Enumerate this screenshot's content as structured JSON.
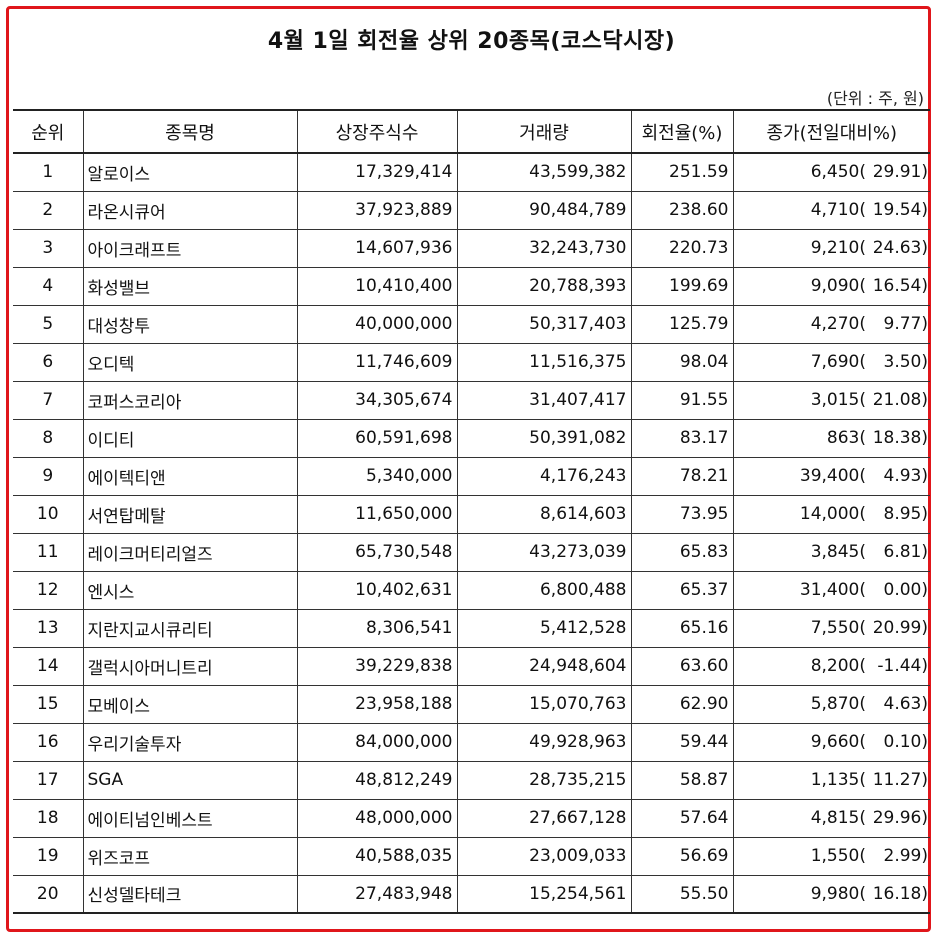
{
  "title": "4월 1일 회전율 상위 20종목(코스닥시장)",
  "unit": "(단위 : 주, 원)",
  "headers": {
    "rank": "순위",
    "name": "종목명",
    "listed_shares": "상장주식수",
    "volume": "거래량",
    "turnover": "회전율(%)",
    "close": "종가(전일대비%)"
  },
  "rows": [
    {
      "rank": "1",
      "name": "알로이스",
      "listed_shares": "17,329,414",
      "volume": "43,599,382",
      "turnover": "251.59",
      "price": "6,450(",
      "change": "29.91)"
    },
    {
      "rank": "2",
      "name": "라온시큐어",
      "listed_shares": "37,923,889",
      "volume": "90,484,789",
      "turnover": "238.60",
      "price": "4,710(",
      "change": "19.54)"
    },
    {
      "rank": "3",
      "name": "아이크래프트",
      "listed_shares": "14,607,936",
      "volume": "32,243,730",
      "turnover": "220.73",
      "price": "9,210(",
      "change": "24.63)"
    },
    {
      "rank": "4",
      "name": "화성밸브",
      "listed_shares": "10,410,400",
      "volume": "20,788,393",
      "turnover": "199.69",
      "price": "9,090(",
      "change": "16.54)"
    },
    {
      "rank": "5",
      "name": "대성창투",
      "listed_shares": "40,000,000",
      "volume": "50,317,403",
      "turnover": "125.79",
      "price": "4,270(",
      "change": "9.77)"
    },
    {
      "rank": "6",
      "name": "오디텍",
      "listed_shares": "11,746,609",
      "volume": "11,516,375",
      "turnover": "98.04",
      "price": "7,690(",
      "change": "3.50)"
    },
    {
      "rank": "7",
      "name": "코퍼스코리아",
      "listed_shares": "34,305,674",
      "volume": "31,407,417",
      "turnover": "91.55",
      "price": "3,015(",
      "change": "21.08)"
    },
    {
      "rank": "8",
      "name": "이디티",
      "listed_shares": "60,591,698",
      "volume": "50,391,082",
      "turnover": "83.17",
      "price": "863(",
      "change": "18.38)"
    },
    {
      "rank": "9",
      "name": "에이텍티앤",
      "listed_shares": "5,340,000",
      "volume": "4,176,243",
      "turnover": "78.21",
      "price": "39,400(",
      "change": "4.93)"
    },
    {
      "rank": "10",
      "name": "서연탑메탈",
      "listed_shares": "11,650,000",
      "volume": "8,614,603",
      "turnover": "73.95",
      "price": "14,000(",
      "change": "8.95)"
    },
    {
      "rank": "11",
      "name": "레이크머티리얼즈",
      "listed_shares": "65,730,548",
      "volume": "43,273,039",
      "turnover": "65.83",
      "price": "3,845(",
      "change": "6.81)"
    },
    {
      "rank": "12",
      "name": "엔시스",
      "listed_shares": "10,402,631",
      "volume": "6,800,488",
      "turnover": "65.37",
      "price": "31,400(",
      "change": "0.00)"
    },
    {
      "rank": "13",
      "name": "지란지교시큐리티",
      "listed_shares": "8,306,541",
      "volume": "5,412,528",
      "turnover": "65.16",
      "price": "7,550(",
      "change": "20.99)"
    },
    {
      "rank": "14",
      "name": "갤럭시아머니트리",
      "listed_shares": "39,229,838",
      "volume": "24,948,604",
      "turnover": "63.60",
      "price": "8,200(",
      "change": "-1.44)"
    },
    {
      "rank": "15",
      "name": "모베이스",
      "listed_shares": "23,958,188",
      "volume": "15,070,763",
      "turnover": "62.90",
      "price": "5,870(",
      "change": "4.63)"
    },
    {
      "rank": "16",
      "name": "우리기술투자",
      "listed_shares": "84,000,000",
      "volume": "49,928,963",
      "turnover": "59.44",
      "price": "9,660(",
      "change": "0.10)"
    },
    {
      "rank": "17",
      "name": "SGA",
      "listed_shares": "48,812,249",
      "volume": "28,735,215",
      "turnover": "58.87",
      "price": "1,135(",
      "change": "11.27)"
    },
    {
      "rank": "18",
      "name": "에이티넘인베스트",
      "listed_shares": "48,000,000",
      "volume": "27,667,128",
      "turnover": "57.64",
      "price": "4,815(",
      "change": "29.96)"
    },
    {
      "rank": "19",
      "name": "위즈코프",
      "listed_shares": "40,588,035",
      "volume": "23,009,033",
      "turnover": "56.69",
      "price": "1,550(",
      "change": "2.99)"
    },
    {
      "rank": "20",
      "name": "신성델타테크",
      "listed_shares": "27,483,948",
      "volume": "15,254,561",
      "turnover": "55.50",
      "price": "9,980(",
      "change": "16.18)"
    }
  ],
  "colors": {
    "frame_border": "#e0161b",
    "text": "#111111",
    "grid": "#333333"
  }
}
